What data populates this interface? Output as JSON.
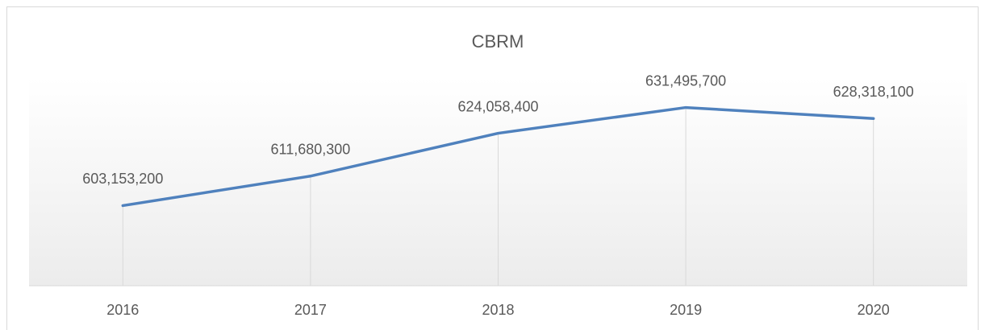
{
  "chart_data": {
    "type": "line",
    "title": "CBRM",
    "categories": [
      "2016",
      "2017",
      "2018",
      "2019",
      "2020"
    ],
    "series": [
      {
        "name": "CBRM",
        "color": "#4f81bd",
        "values": [
          603153200,
          611680300,
          624058400,
          631495700,
          628318100
        ],
        "value_labels": [
          "603,153,200",
          "611,680,300",
          "624,058,400",
          "631,495,700",
          "628,318,100"
        ]
      }
    ],
    "ylim": [
      580000000,
      640000000
    ],
    "drop_lines": true
  }
}
